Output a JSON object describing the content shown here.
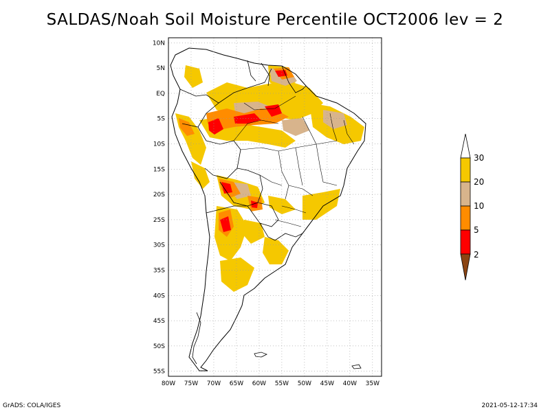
{
  "title": "SALDAS/Noah Soil Moisture Percentile OCT2006 lev = 2",
  "footer": {
    "left": "GrADS: COLA/IGES",
    "right": "2021-05-12-17:34"
  },
  "map": {
    "lon_ticks": [
      "80W",
      "75W",
      "70W",
      "65W",
      "60W",
      "55W",
      "50W",
      "45W",
      "40W",
      "35W"
    ],
    "lat_ticks": [
      "10N",
      "5N",
      "EQ",
      "5S",
      "10S",
      "15S",
      "20S",
      "25S",
      "30S",
      "35S",
      "40S",
      "45S",
      "50S",
      "55S"
    ],
    "lon_range": [
      -80,
      -33
    ],
    "lat_range": [
      -56,
      11
    ]
  },
  "legend": {
    "labels": [
      "30",
      "20",
      "10",
      "5",
      "2"
    ],
    "colors": {
      "above": "#ffffff",
      "c20_30": "#f5c800",
      "c10_20": "#d8b48c",
      "c5_10": "#ff8c00",
      "c2_5": "#ff0000",
      "below": "#8b4513"
    }
  }
}
